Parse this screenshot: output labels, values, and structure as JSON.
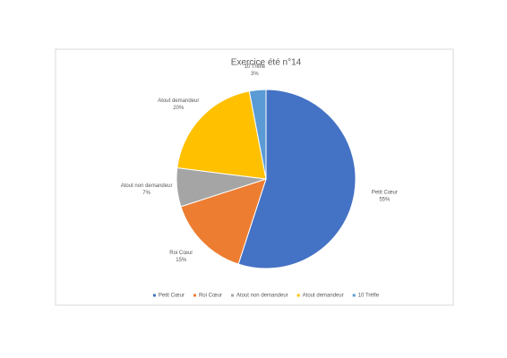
{
  "chart_data": {
    "type": "pie",
    "title": "Exercice été n°14",
    "categories": [
      "Petit Cœur",
      "Roi Cœur",
      "Atout non demandeur",
      "Atout demandeur",
      "10 Trèfle"
    ],
    "values": [
      55,
      15,
      7,
      20,
      3
    ],
    "value_labels": [
      "55%",
      "15%",
      "7%",
      "20%",
      "3%"
    ],
    "colors": [
      "#4472c4",
      "#ed7d31",
      "#a5a5a5",
      "#ffc000",
      "#5b9bd5"
    ],
    "legend": "bottom"
  }
}
